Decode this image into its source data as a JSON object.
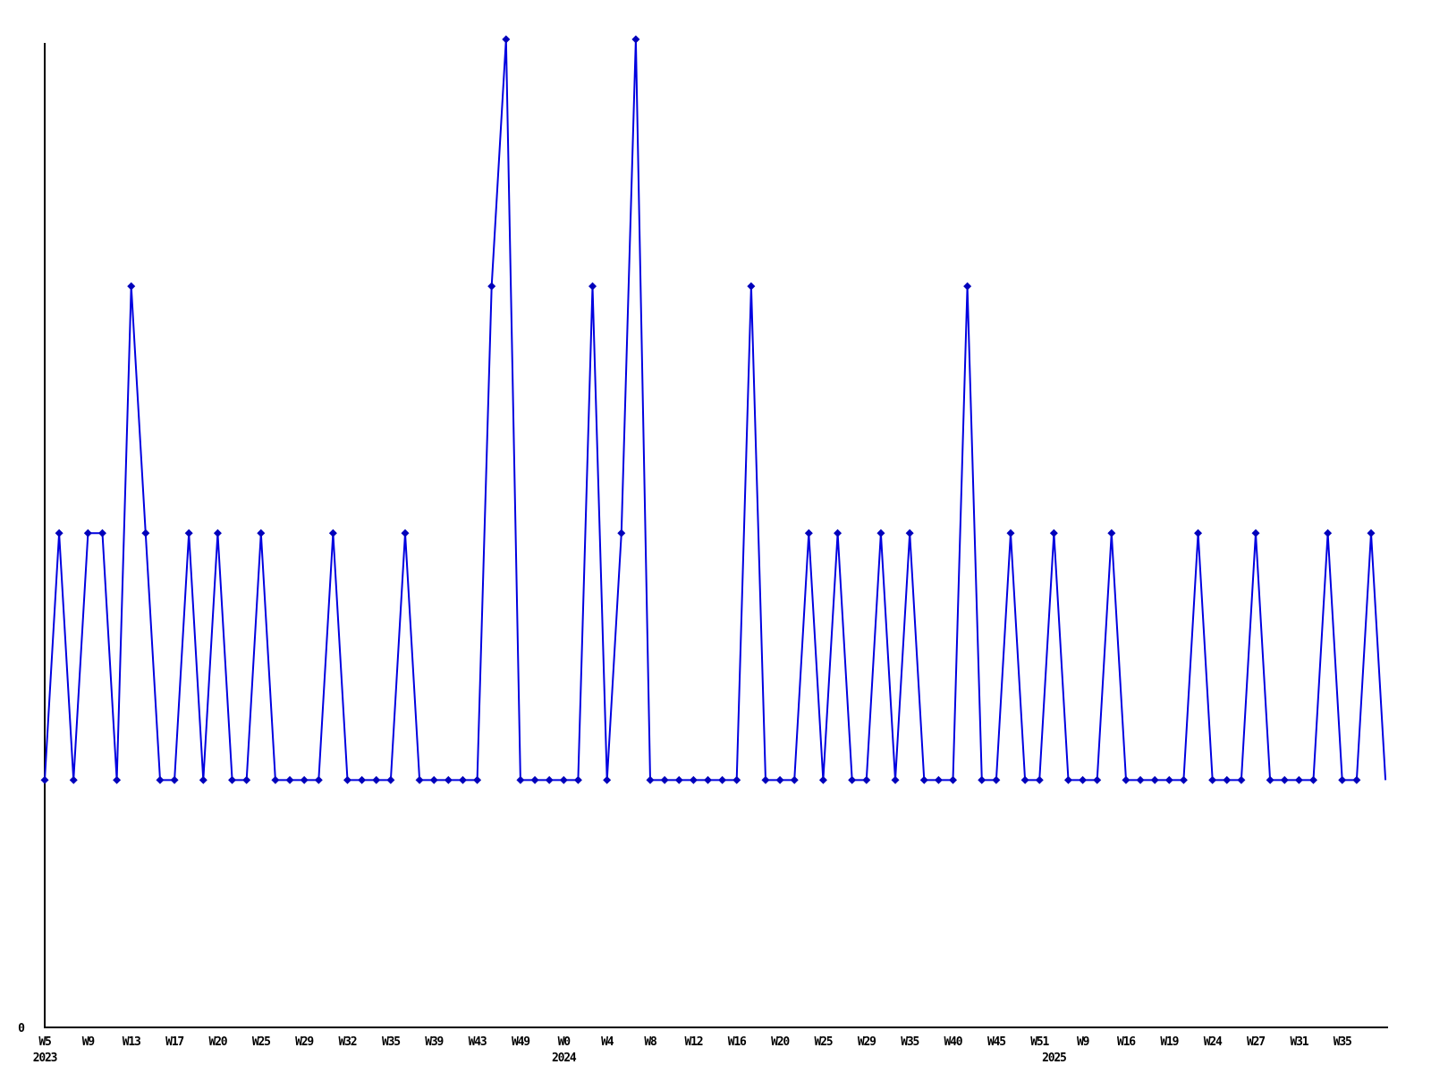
{
  "figure": {
    "background": "#ffffff",
    "colors": {
      "line": "#0000e0",
      "marker": "#0000bb",
      "axis": "#000000",
      "text": "#000000"
    }
  },
  "chart_data": {
    "type": "line",
    "title": "",
    "xlabel": "",
    "ylabel": "",
    "ylim": [
      0,
      4
    ],
    "grid": false,
    "legend": false,
    "marker_shape": "diamond",
    "y_tick_labels": [
      "0"
    ],
    "values": [
      1,
      2,
      1,
      2,
      2,
      1,
      3,
      2,
      1,
      1,
      2,
      1,
      2,
      1,
      1,
      2,
      1,
      1,
      1,
      1,
      2,
      1,
      1,
      1,
      1,
      2,
      1,
      1,
      1,
      1,
      1,
      3,
      4,
      1,
      1,
      1,
      1,
      1,
      3,
      1,
      2,
      4,
      1,
      1,
      1,
      1,
      1,
      1,
      1,
      3,
      1,
      1,
      1,
      2,
      1,
      2,
      1,
      1,
      2,
      1,
      2,
      1,
      1,
      1,
      3,
      1,
      1,
      2,
      1,
      1,
      2,
      1,
      1,
      1,
      2,
      1,
      1,
      1,
      1,
      1,
      2,
      1,
      1,
      1,
      2,
      1,
      1,
      1,
      1,
      2,
      1,
      1,
      2,
      1
    ],
    "week_ticks": [
      {
        "index": 0,
        "label": "W5"
      },
      {
        "index": 3,
        "label": "W9"
      },
      {
        "index": 6,
        "label": "W13"
      },
      {
        "index": 9,
        "label": "W17"
      },
      {
        "index": 12,
        "label": "W20"
      },
      {
        "index": 15,
        "label": "W25"
      },
      {
        "index": 18,
        "label": "W29"
      },
      {
        "index": 21,
        "label": "W32"
      },
      {
        "index": 24,
        "label": "W35"
      },
      {
        "index": 27,
        "label": "W39"
      },
      {
        "index": 30,
        "label": "W43"
      },
      {
        "index": 33,
        "label": "W49"
      },
      {
        "index": 36,
        "label": "W0"
      },
      {
        "index": 39,
        "label": "W4"
      },
      {
        "index": 42,
        "label": "W8"
      },
      {
        "index": 45,
        "label": "W12"
      },
      {
        "index": 48,
        "label": "W16"
      },
      {
        "index": 51,
        "label": "W20"
      },
      {
        "index": 54,
        "label": "W25"
      },
      {
        "index": 57,
        "label": "W29"
      },
      {
        "index": 60,
        "label": "W35"
      },
      {
        "index": 63,
        "label": "W40"
      },
      {
        "index": 66,
        "label": "W45"
      },
      {
        "index": 69,
        "label": "W51"
      },
      {
        "index": 72,
        "label": "W9"
      },
      {
        "index": 75,
        "label": "W16"
      },
      {
        "index": 78,
        "label": "W19"
      },
      {
        "index": 81,
        "label": "W24"
      },
      {
        "index": 84,
        "label": "W27"
      },
      {
        "index": 87,
        "label": "W31"
      },
      {
        "index": 90,
        "label": "W35"
      }
    ],
    "year_labels": [
      {
        "index": 0,
        "text": "2023"
      },
      {
        "index": 36,
        "text": "2024"
      },
      {
        "index": 70,
        "text": "2025"
      }
    ]
  }
}
